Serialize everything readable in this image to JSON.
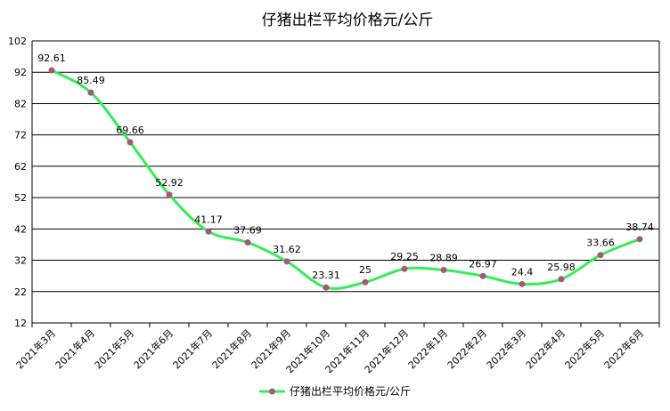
{
  "chart_data": {
    "type": "line",
    "title": "仔猪出栏平均价格元/公斤",
    "xlabel": "",
    "ylabel": "",
    "categories": [
      "2021年3月",
      "2021年4月",
      "2021年5月",
      "2021年6月",
      "2021年7月",
      "2021年8月",
      "2021年9月",
      "2021年10月",
      "2021年11月",
      "2021年12月",
      "2022年1月",
      "2022年2月",
      "2022年3月",
      "2022年4月",
      "2022年5月",
      "2022年6月"
    ],
    "series": [
      {
        "name": "仔猪出栏平均价格元/公斤",
        "values": [
          92.61,
          85.49,
          69.66,
          52.92,
          41.17,
          37.69,
          31.62,
          23.31,
          25,
          29.25,
          28.89,
          26.97,
          24.4,
          25.98,
          33.66,
          38.74
        ],
        "labels": [
          "92.61",
          "85.49",
          "69.66",
          "52.92",
          "41.17",
          "37.69",
          "31.62",
          "23.31",
          "25",
          "29.25",
          "28.89",
          "26.97",
          "24.4",
          "25.98",
          "33.66",
          "38.74"
        ],
        "line_color": "#33ee55",
        "marker_color": "#a8557a"
      }
    ],
    "ylim": [
      12,
      102
    ],
    "yticks": [
      "12",
      "22",
      "32",
      "42",
      "52",
      "62",
      "72",
      "82",
      "92",
      "102"
    ],
    "grid": true,
    "legend": "bottom",
    "smooth": true
  }
}
